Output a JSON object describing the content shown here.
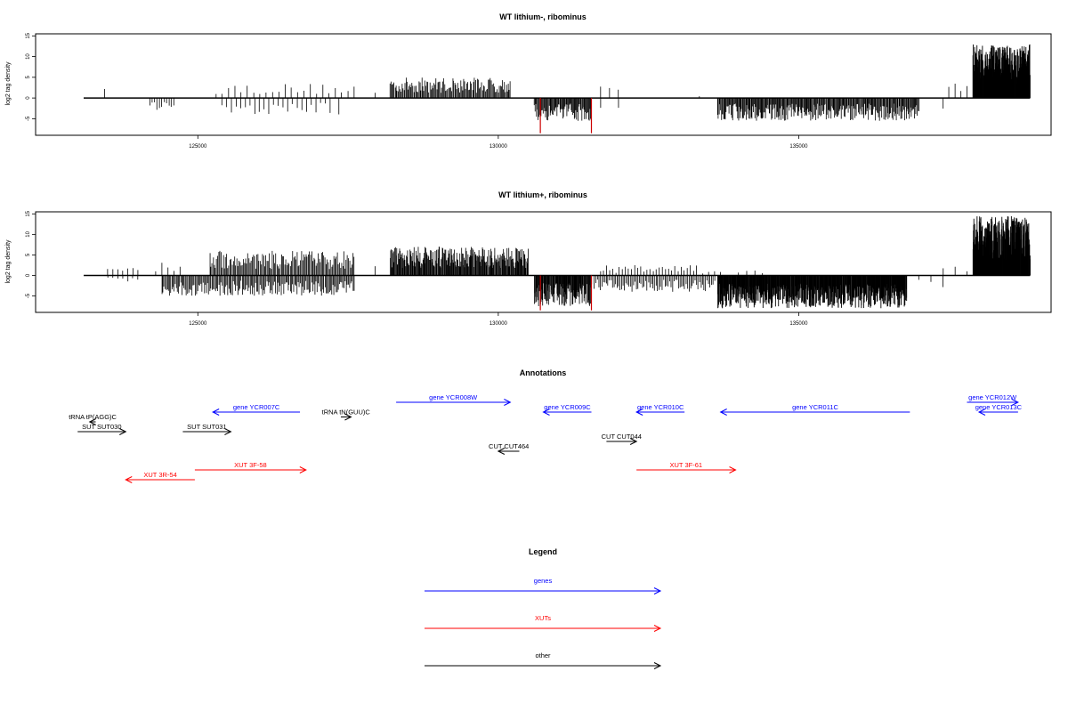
{
  "colors": {
    "genes": "#0000ff",
    "xuts": "#ff0000",
    "other": "#000000",
    "marker": "#cc0000"
  },
  "chart_data": [
    {
      "type": "bar",
      "title": "WT lithium-, ribominus",
      "ylabel": "log2 tag density",
      "xlim": [
        122300,
        139200
      ],
      "ylim": [
        -9,
        15.5
      ],
      "yticks": [
        -5,
        0,
        5,
        10,
        15
      ],
      "xticks": [
        125000,
        130000,
        135000
      ],
      "grid": false,
      "marker_lines": [
        130700,
        131550
      ],
      "plus_strand_regions": [
        {
          "start": 123400,
          "end": 123500,
          "max": 2.5,
          "density": 0.03
        },
        {
          "start": 125300,
          "end": 127600,
          "max": 3.5,
          "density": 0.15
        },
        {
          "start": 127900,
          "end": 128000,
          "max": 2,
          "density": 0.05
        },
        {
          "start": 128200,
          "end": 130200,
          "max": 5,
          "density": 0.9
        },
        {
          "start": 131700,
          "end": 132000,
          "max": 3.5,
          "density": 0.15
        },
        {
          "start": 133300,
          "end": 133400,
          "max": 1.5,
          "density": 0.05
        },
        {
          "start": 137500,
          "end": 137800,
          "max": 3.5,
          "density": 0.2
        },
        {
          "start": 137900,
          "end": 138850,
          "max": 13,
          "density": 4
        }
      ],
      "minus_strand_regions": [
        {
          "start": 124200,
          "end": 124600,
          "max": -3.5,
          "density": 0.4
        },
        {
          "start": 125400,
          "end": 127200,
          "max": -4,
          "density": 0.2
        },
        {
          "start": 127300,
          "end": 127400,
          "max": -4,
          "density": 0.05
        },
        {
          "start": 130600,
          "end": 131550,
          "max": -5.5,
          "density": 1.2
        },
        {
          "start": 131700,
          "end": 132000,
          "max": -2.5,
          "density": 0.1
        },
        {
          "start": 133650,
          "end": 137000,
          "max": -5.5,
          "density": 1.2
        },
        {
          "start": 137300,
          "end": 137500,
          "max": -3,
          "density": 0.05
        }
      ]
    },
    {
      "type": "bar",
      "title": "WT lithium+, ribominus",
      "ylabel": "log2 tag density",
      "xlim": [
        122300,
        139200
      ],
      "ylim": [
        -9,
        15.5
      ],
      "yticks": [
        -5,
        0,
        5,
        10,
        15
      ],
      "xticks": [
        125000,
        130000,
        135000
      ],
      "grid": false,
      "marker_lines": [
        130700,
        131550
      ],
      "plus_strand_regions": [
        {
          "start": 123500,
          "end": 124000,
          "max": 2.5,
          "density": 0.2
        },
        {
          "start": 124300,
          "end": 124700,
          "max": 3.5,
          "density": 0.2
        },
        {
          "start": 125200,
          "end": 127600,
          "max": 6,
          "density": 0.8
        },
        {
          "start": 127900,
          "end": 128000,
          "max": 4,
          "density": 0.05
        },
        {
          "start": 128200,
          "end": 130500,
          "max": 7,
          "density": 1.5
        },
        {
          "start": 131700,
          "end": 133300,
          "max": 2.5,
          "density": 0.3
        },
        {
          "start": 133400,
          "end": 133700,
          "max": 1.5,
          "density": 0.2
        },
        {
          "start": 134000,
          "end": 134400,
          "max": 1.5,
          "density": 0.15
        },
        {
          "start": 137400,
          "end": 137800,
          "max": 2.5,
          "density": 0.1
        },
        {
          "start": 137900,
          "end": 138850,
          "max": 14.5,
          "density": 4
        }
      ],
      "minus_strand_regions": [
        {
          "start": 123500,
          "end": 124000,
          "max": -2,
          "density": 0.2
        },
        {
          "start": 124400,
          "end": 127600,
          "max": -5,
          "density": 0.8
        },
        {
          "start": 130600,
          "end": 131550,
          "max": -7.5,
          "density": 2
        },
        {
          "start": 131600,
          "end": 133600,
          "max": -4,
          "density": 0.6
        },
        {
          "start": 133650,
          "end": 136800,
          "max": -8,
          "density": 2.5
        },
        {
          "start": 137000,
          "end": 137400,
          "max": -3,
          "density": 0.1
        }
      ]
    }
  ],
  "annotations": {
    "title": "Annotations",
    "features": [
      {
        "label": "gene YCR007C",
        "category": "genes",
        "strand": "-",
        "start": 125250,
        "end": 126700,
        "row": 0
      },
      {
        "label": "gene YCR008W",
        "category": "genes",
        "strand": "+",
        "start": 128300,
        "end": 130200,
        "row": -1
      },
      {
        "label": "gene YCR009C",
        "category": "genes",
        "strand": "-",
        "start": 130750,
        "end": 131550,
        "row": 0
      },
      {
        "label": "gene YCR010C",
        "category": "genes",
        "strand": "-",
        "start": 132300,
        "end": 133100,
        "row": 0
      },
      {
        "label": "gene YCR011C",
        "category": "genes",
        "strand": "-",
        "start": 133700,
        "end": 136850,
        "row": 0
      },
      {
        "label": "gene YCR012W",
        "category": "genes",
        "strand": "+",
        "start": 137800,
        "end": 138650,
        "row": -1
      },
      {
        "label": "gene YCR013C",
        "category": "genes",
        "strand": "-",
        "start": 138000,
        "end": 138650,
        "row": 0
      },
      {
        "label": "tRNA tP(AGG)C",
        "category": "other",
        "strand": "-",
        "start": 123200,
        "end": 123300,
        "row": 1
      },
      {
        "label": "tRNA tN(GUU)C",
        "category": "other",
        "strand": "+",
        "start": 127380,
        "end": 127550,
        "row": 0.5
      },
      {
        "label": "SUT SUT030",
        "category": "other",
        "strand": "+",
        "start": 123000,
        "end": 123800,
        "row": 2
      },
      {
        "label": "SUT SUT031",
        "category": "other",
        "strand": "+",
        "start": 124750,
        "end": 125550,
        "row": 2
      },
      {
        "label": "CUT CUT464",
        "category": "other",
        "strand": "-",
        "start": 130000,
        "end": 130350,
        "row": 4
      },
      {
        "label": "CUT CUT044",
        "category": "other",
        "strand": "+",
        "start": 131800,
        "end": 132300,
        "row": 3
      },
      {
        "label": "XUT 3F-58",
        "category": "xuts",
        "strand": "+",
        "start": 124950,
        "end": 126800,
        "row": 5
      },
      {
        "label": "XUT 3R-54",
        "category": "xuts",
        "strand": "-",
        "start": 123800,
        "end": 124950,
        "row": 6
      },
      {
        "label": "XUT 3F-61",
        "category": "xuts",
        "strand": "+",
        "start": 132300,
        "end": 133950,
        "row": 5
      }
    ]
  },
  "legend": {
    "title": "Legend",
    "items": [
      {
        "label": "genes",
        "category": "genes"
      },
      {
        "label": "XUTs",
        "category": "xuts"
      },
      {
        "label": "other",
        "category": "other"
      }
    ]
  }
}
